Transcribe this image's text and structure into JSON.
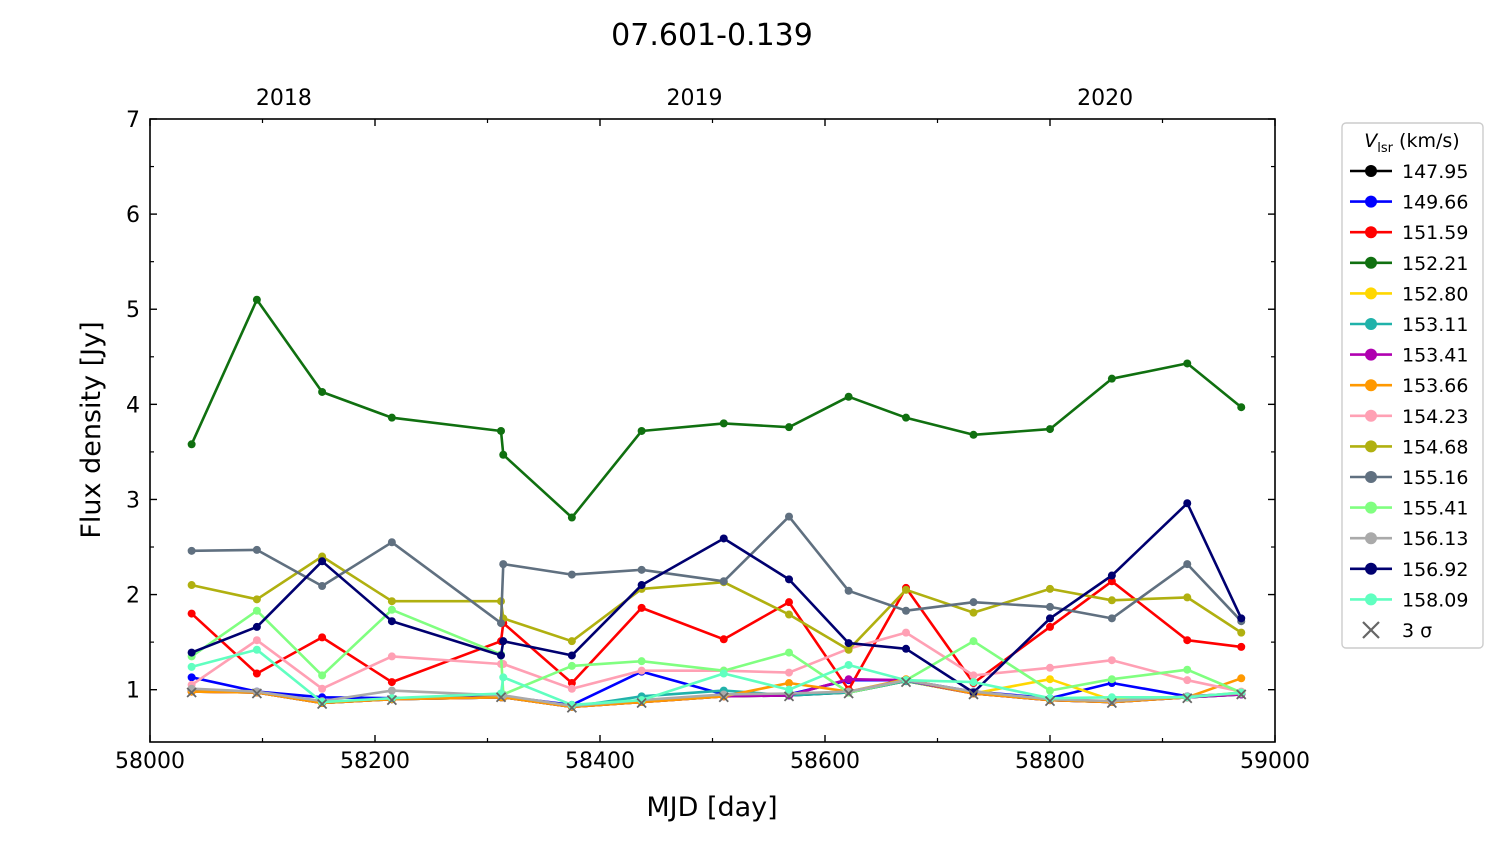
{
  "chart_data": {
    "type": "line",
    "title": "07.601-0.139",
    "xlabel": "MJD [day]",
    "ylabel": "Flux density [Jy]",
    "xlim": [
      58000,
      59000
    ],
    "ylim": [
      0.45,
      7
    ],
    "xticks": [
      58000,
      58200,
      58400,
      58600,
      58800,
      59000
    ],
    "yticks": [
      1,
      2,
      3,
      4,
      5,
      6,
      7
    ],
    "top_axis": {
      "ticks": [
        {
          "x": 58119,
          "label": "2018"
        },
        {
          "x": 58484,
          "label": "2019"
        },
        {
          "x": 58849,
          "label": "2020"
        }
      ]
    },
    "grid": false,
    "legend": {
      "position": "right-outside",
      "title_main": "V",
      "title_sub": "lsr",
      "title_unit": " (km/s)",
      "limit_marker_label": "3 σ",
      "limit_marker_color": "#666666"
    },
    "x": [
      58037,
      58095,
      58153,
      58215,
      58312,
      58314,
      58375,
      58437,
      58510,
      58568,
      58621,
      58672,
      58732,
      58800,
      58855,
      58922,
      58970
    ],
    "series": [
      {
        "name": "147.95",
        "color": "#000000",
        "values": [
          0.98,
          0.97,
          0.86,
          0.9,
          0.92,
          0.92,
          0.82,
          0.87,
          0.93,
          0.94,
          0.97,
          1.09,
          0.96,
          0.89,
          0.87,
          0.92,
          0.95
        ]
      },
      {
        "name": "149.66",
        "color": "#0000ff",
        "values": [
          1.13,
          0.98,
          0.92,
          0.91,
          0.93,
          0.93,
          0.84,
          1.19,
          0.95,
          0.95,
          1.1,
          1.1,
          0.98,
          0.91,
          1.07,
          0.93,
          0.96
        ]
      },
      {
        "name": "151.59",
        "color": "#ff0000",
        "values": [
          1.8,
          1.17,
          1.55,
          1.08,
          1.51,
          1.7,
          1.07,
          1.86,
          1.53,
          1.92,
          1.0,
          2.07,
          1.07,
          1.66,
          2.14,
          1.52,
          1.45
        ]
      },
      {
        "name": "152.21",
        "color": "#107010",
        "values": [
          3.58,
          5.1,
          4.13,
          3.86,
          3.72,
          3.47,
          2.81,
          3.72,
          3.8,
          3.76,
          4.08,
          3.86,
          3.68,
          3.74,
          4.27,
          4.43,
          3.97
        ]
      },
      {
        "name": "152.80",
        "color": "#ffd700",
        "values": [
          0.98,
          0.97,
          0.86,
          0.9,
          0.92,
          0.92,
          0.82,
          0.87,
          0.93,
          0.95,
          0.97,
          1.09,
          0.96,
          1.11,
          0.89,
          0.92,
          0.97
        ]
      },
      {
        "name": "153.11",
        "color": "#20b2aa",
        "values": [
          0.99,
          0.97,
          0.86,
          0.9,
          0.92,
          0.92,
          0.82,
          0.93,
          0.99,
          0.94,
          0.97,
          1.09,
          0.97,
          0.89,
          0.87,
          0.92,
          0.95
        ]
      },
      {
        "name": "153.41",
        "color": "#b000b0",
        "values": [
          0.98,
          0.97,
          0.86,
          0.9,
          0.92,
          0.92,
          0.82,
          0.87,
          0.93,
          0.94,
          1.11,
          1.1,
          0.96,
          0.89,
          0.87,
          0.92,
          0.95
        ]
      },
      {
        "name": "153.66",
        "color": "#ff9900",
        "values": [
          0.98,
          0.97,
          0.86,
          0.9,
          0.92,
          0.92,
          0.82,
          0.87,
          0.93,
          1.07,
          0.98,
          1.11,
          0.96,
          0.89,
          0.87,
          0.92,
          1.12
        ]
      },
      {
        "name": "154.23",
        "color": "#ffa0b4",
        "values": [
          1.05,
          1.52,
          1.01,
          1.35,
          1.27,
          1.27,
          1.01,
          1.2,
          1.2,
          1.18,
          1.43,
          1.6,
          1.15,
          1.23,
          1.31,
          1.1,
          0.98
        ]
      },
      {
        "name": "154.68",
        "color": "#b0b010",
        "values": [
          2.1,
          1.95,
          2.4,
          1.93,
          1.93,
          1.75,
          1.51,
          2.06,
          2.13,
          1.79,
          1.42,
          2.05,
          1.81,
          2.06,
          1.94,
          1.97,
          1.6
        ]
      },
      {
        "name": "155.16",
        "color": "#607080",
        "values": [
          2.46,
          2.47,
          2.09,
          2.55,
          1.7,
          2.32,
          2.21,
          2.26,
          2.14,
          2.82,
          2.04,
          1.83,
          1.92,
          1.87,
          1.75,
          2.32,
          1.72
        ]
      },
      {
        "name": "155.41",
        "color": "#80ff80",
        "values": [
          1.35,
          1.83,
          1.15,
          1.84,
          1.37,
          0.95,
          1.25,
          1.3,
          1.2,
          1.39,
          0.97,
          1.1,
          1.51,
          0.99,
          1.11,
          1.21,
          0.97
        ]
      },
      {
        "name": "156.13",
        "color": "#aaaaaa",
        "values": [
          1.01,
          0.98,
          0.88,
          0.99,
          0.94,
          0.94,
          0.83,
          0.89,
          0.95,
          0.96,
          0.98,
          1.1,
          0.98,
          0.9,
          0.88,
          0.93,
          0.96
        ]
      },
      {
        "name": "156.92",
        "color": "#000070",
        "values": [
          1.39,
          1.66,
          2.35,
          1.72,
          1.36,
          1.51,
          1.36,
          2.1,
          2.59,
          2.16,
          1.49,
          1.43,
          0.97,
          1.75,
          2.2,
          2.96,
          1.75
        ]
      },
      {
        "name": "158.09",
        "color": "#60ffc0",
        "values": [
          1.24,
          1.42,
          0.87,
          0.91,
          0.96,
          1.13,
          0.84,
          0.89,
          1.17,
          1.0,
          1.26,
          1.1,
          1.08,
          0.91,
          0.92,
          0.92,
          0.97
        ]
      }
    ],
    "upper_limits_3sigma": {
      "x": [
        58037,
        58095,
        58153,
        58215,
        58312,
        58375,
        58437,
        58510,
        58568,
        58621,
        58672,
        58732,
        58800,
        58855,
        58922,
        58970
      ],
      "values": [
        0.97,
        0.96,
        0.85,
        0.89,
        0.92,
        0.81,
        0.86,
        0.92,
        0.93,
        0.96,
        1.08,
        0.95,
        0.88,
        0.86,
        0.91,
        0.95
      ]
    }
  }
}
